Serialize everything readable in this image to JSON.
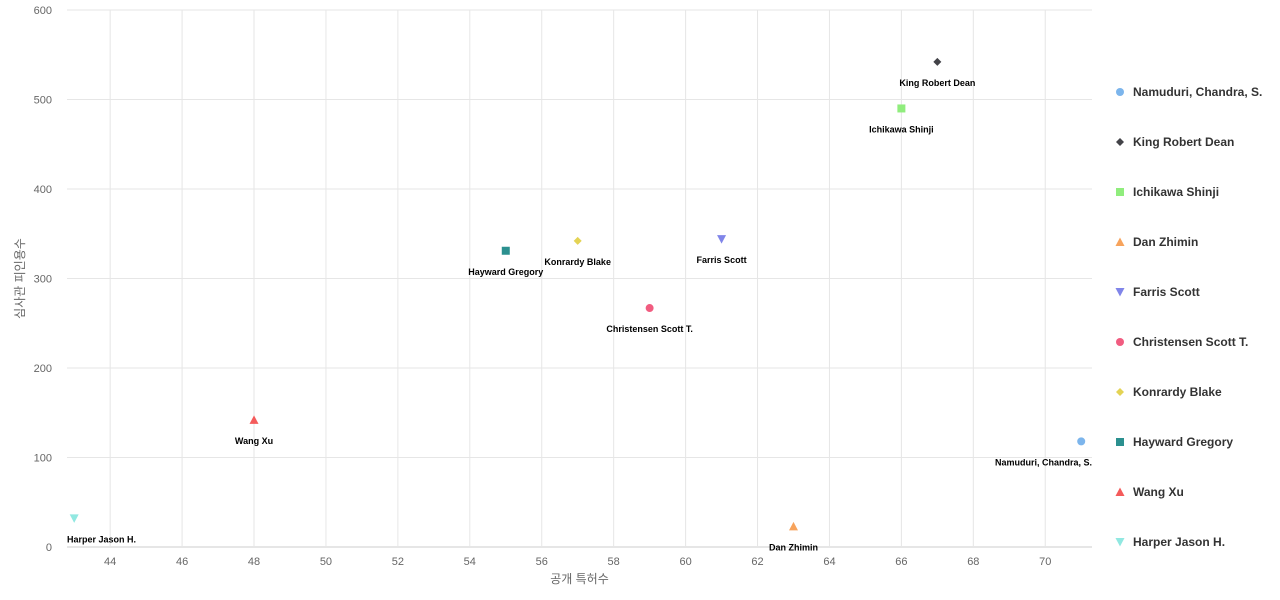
{
  "chart_data": {
    "type": "scatter",
    "title": "",
    "xlabel": "공개 특허수",
    "ylabel": "심사관 피인용수",
    "xlim": [
      42.8,
      71.3
    ],
    "ylim": [
      0,
      600
    ],
    "xticks": [
      44,
      46,
      48,
      50,
      52,
      54,
      56,
      58,
      60,
      62,
      64,
      66,
      68,
      70
    ],
    "yticks": [
      0,
      100,
      200,
      300,
      400,
      500,
      600
    ],
    "grid": true,
    "legend_position": "right",
    "series": [
      {
        "name": "Namuduri, Chandra, S.",
        "marker": "circle",
        "color": "#7cb5ec",
        "points": [
          {
            "x": 71,
            "y": 118,
            "label": "Namuduri, Chandra, S."
          }
        ]
      },
      {
        "name": "King Robert Dean",
        "marker": "diamond",
        "color": "#434348",
        "points": [
          {
            "x": 67,
            "y": 542,
            "label": "King Robert Dean"
          }
        ]
      },
      {
        "name": "Ichikawa Shinji",
        "marker": "square",
        "color": "#90ed7d",
        "points": [
          {
            "x": 66,
            "y": 490,
            "label": "Ichikawa Shinji"
          }
        ]
      },
      {
        "name": "Dan Zhimin",
        "marker": "triangle",
        "color": "#f7a35c",
        "points": [
          {
            "x": 63,
            "y": 23,
            "label": "Dan Zhimin"
          }
        ]
      },
      {
        "name": "Farris Scott",
        "marker": "triangle-down",
        "color": "#8085e9",
        "points": [
          {
            "x": 61,
            "y": 344,
            "label": "Farris Scott"
          }
        ]
      },
      {
        "name": "Christensen Scott T.",
        "marker": "circle",
        "color": "#f15c80",
        "points": [
          {
            "x": 59,
            "y": 267,
            "label": "Christensen Scott T."
          }
        ]
      },
      {
        "name": "Konrardy Blake",
        "marker": "diamond",
        "color": "#e4d354",
        "points": [
          {
            "x": 57,
            "y": 342,
            "label": "Konrardy Blake"
          }
        ]
      },
      {
        "name": "Hayward Gregory",
        "marker": "square",
        "color": "#2b908f",
        "points": [
          {
            "x": 55,
            "y": 331,
            "label": "Hayward Gregory"
          }
        ]
      },
      {
        "name": "Wang Xu",
        "marker": "triangle",
        "color": "#f45b5b",
        "points": [
          {
            "x": 48,
            "y": 142,
            "label": "Wang Xu"
          }
        ]
      },
      {
        "name": "Harper Jason H.",
        "marker": "triangle-down",
        "color": "#91e8e1",
        "points": [
          {
            "x": 43,
            "y": 32,
            "label": "Harper Jason H."
          }
        ]
      }
    ]
  }
}
